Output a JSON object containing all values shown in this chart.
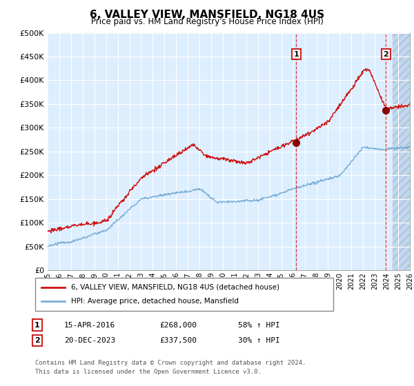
{
  "title": "6, VALLEY VIEW, MANSFIELD, NG18 4US",
  "subtitle": "Price paid vs. HM Land Registry's House Price Index (HPI)",
  "ytick_values": [
    0,
    50000,
    100000,
    150000,
    200000,
    250000,
    300000,
    350000,
    400000,
    450000,
    500000
  ],
  "ylim": [
    0,
    500000
  ],
  "xlim_start": 1995,
  "xlim_end": 2026,
  "hpi_color": "#7aaed6",
  "price_color": "#cc1111",
  "marker_color": "#880000",
  "annotation_1": {
    "label": "1",
    "date_str": "15-APR-2016",
    "price": 268000,
    "price_str": "£268,000",
    "hpi_pct": "58% ↑ HPI",
    "x_year": 2016.28
  },
  "annotation_2": {
    "label": "2",
    "date_str": "20-DEC-2023",
    "price": 337500,
    "price_str": "£337,500",
    "hpi_pct": "30% ↑ HPI",
    "x_year": 2023.95
  },
  "legend_entry1": "6, VALLEY VIEW, MANSFIELD, NG18 4US (detached house)",
  "legend_entry2": "HPI: Average price, detached house, Mansfield",
  "footer_line1": "Contains HM Land Registry data © Crown copyright and database right 2024.",
  "footer_line2": "This data is licensed under the Open Government Licence v3.0.",
  "plot_bg_color": "#ddeeff",
  "hatch_color": "#c0d8ef",
  "grid_color": "#ffffff",
  "background_color": "#ffffff"
}
